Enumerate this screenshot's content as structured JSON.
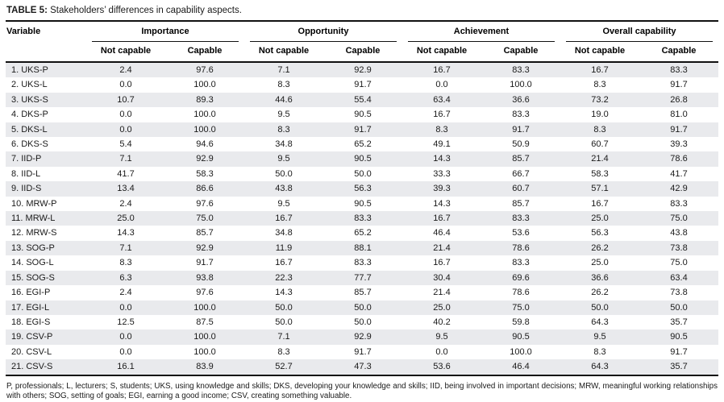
{
  "title": {
    "label": "TABLE 5:",
    "text": " Stakeholders’ differences in capability aspects."
  },
  "table": {
    "variable_header": "Variable",
    "groups": [
      {
        "label": "Importance"
      },
      {
        "label": "Opportunity"
      },
      {
        "label": "Achievement"
      },
      {
        "label": "Overall capability"
      }
    ],
    "sub_headers": [
      "Not capable",
      "Capable"
    ],
    "rows": [
      {
        "variable": "1. UKS-P",
        "values": [
          "2.4",
          "97.6",
          "7.1",
          "92.9",
          "16.7",
          "83.3",
          "16.7",
          "83.3"
        ]
      },
      {
        "variable": "2. UKS-L",
        "values": [
          "0.0",
          "100.0",
          "8.3",
          "91.7",
          "0.0",
          "100.0",
          "8.3",
          "91.7"
        ]
      },
      {
        "variable": "3. UKS-S",
        "values": [
          "10.7",
          "89.3",
          "44.6",
          "55.4",
          "63.4",
          "36.6",
          "73.2",
          "26.8"
        ]
      },
      {
        "variable": "4. DKS-P",
        "values": [
          "0.0",
          "100.0",
          "9.5",
          "90.5",
          "16.7",
          "83.3",
          "19.0",
          "81.0"
        ]
      },
      {
        "variable": "5. DKS-L",
        "values": [
          "0.0",
          "100.0",
          "8.3",
          "91.7",
          "8.3",
          "91.7",
          "8.3",
          "91.7"
        ]
      },
      {
        "variable": "6. DKS-S",
        "values": [
          "5.4",
          "94.6",
          "34.8",
          "65.2",
          "49.1",
          "50.9",
          "60.7",
          "39.3"
        ]
      },
      {
        "variable": "7. IID-P",
        "values": [
          "7.1",
          "92.9",
          "9.5",
          "90.5",
          "14.3",
          "85.7",
          "21.4",
          "78.6"
        ]
      },
      {
        "variable": "8. IID-L",
        "values": [
          "41.7",
          "58.3",
          "50.0",
          "50.0",
          "33.3",
          "66.7",
          "58.3",
          "41.7"
        ]
      },
      {
        "variable": "9. IID-S",
        "values": [
          "13.4",
          "86.6",
          "43.8",
          "56.3",
          "39.3",
          "60.7",
          "57.1",
          "42.9"
        ]
      },
      {
        "variable": "10. MRW-P",
        "values": [
          "2.4",
          "97.6",
          "9.5",
          "90.5",
          "14.3",
          "85.7",
          "16.7",
          "83.3"
        ]
      },
      {
        "variable": "11. MRW-L",
        "values": [
          "25.0",
          "75.0",
          "16.7",
          "83.3",
          "16.7",
          "83.3",
          "25.0",
          "75.0"
        ]
      },
      {
        "variable": "12. MRW-S",
        "values": [
          "14.3",
          "85.7",
          "34.8",
          "65.2",
          "46.4",
          "53.6",
          "56.3",
          "43.8"
        ]
      },
      {
        "variable": "13. SOG-P",
        "values": [
          "7.1",
          "92.9",
          "11.9",
          "88.1",
          "21.4",
          "78.6",
          "26.2",
          "73.8"
        ]
      },
      {
        "variable": "14. SOG-L",
        "values": [
          "8.3",
          "91.7",
          "16.7",
          "83.3",
          "16.7",
          "83.3",
          "25.0",
          "75.0"
        ]
      },
      {
        "variable": "15. SOG-S",
        "values": [
          "6.3",
          "93.8",
          "22.3",
          "77.7",
          "30.4",
          "69.6",
          "36.6",
          "63.4"
        ]
      },
      {
        "variable": "16. EGI-P",
        "values": [
          "2.4",
          "97.6",
          "14.3",
          "85.7",
          "21.4",
          "78.6",
          "26.2",
          "73.8"
        ]
      },
      {
        "variable": "17. EGI-L",
        "values": [
          "0.0",
          "100.0",
          "50.0",
          "50.0",
          "25.0",
          "75.0",
          "50.0",
          "50.0"
        ]
      },
      {
        "variable": "18. EGI-S",
        "values": [
          "12.5",
          "87.5",
          "50.0",
          "50.0",
          "40.2",
          "59.8",
          "64.3",
          "35.7"
        ]
      },
      {
        "variable": "19. CSV-P",
        "values": [
          "0.0",
          "100.0",
          "7.1",
          "92.9",
          "9.5",
          "90.5",
          "9.5",
          "90.5"
        ]
      },
      {
        "variable": "20. CSV-L",
        "values": [
          "0.0",
          "100.0",
          "8.3",
          "91.7",
          "0.0",
          "100.0",
          "8.3",
          "91.7"
        ]
      },
      {
        "variable": "21. CSV-S",
        "values": [
          "16.1",
          "83.9",
          "52.7",
          "47.3",
          "53.6",
          "46.4",
          "64.3",
          "35.7"
        ]
      }
    ]
  },
  "footnote": "P, professionals; L, lecturers; S, students; UKS, using knowledge and skills; DKS, developing your knowledge and skills; IID, being involved in important decisions; MRW, meaningful working relationships with others; SOG, setting of goals; EGI, earning a good income; CSV, creating something valuable.",
  "colors": {
    "stripe": "#e9eaed",
    "rule": "#111111",
    "text": "#1a1a1a"
  }
}
